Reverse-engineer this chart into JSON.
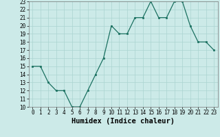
{
  "x": [
    0,
    1,
    2,
    3,
    4,
    5,
    6,
    7,
    8,
    9,
    10,
    11,
    12,
    13,
    14,
    15,
    16,
    17,
    18,
    19,
    20,
    21,
    22,
    23
  ],
  "y": [
    15,
    15,
    13,
    12,
    12,
    10,
    10,
    12,
    14,
    16,
    20,
    19,
    19,
    21,
    21,
    23,
    21,
    21,
    23,
    23,
    20,
    18,
    18,
    17
  ],
  "line_color": "#1a7060",
  "marker_color": "#1a7060",
  "bg_color": "#cceae8",
  "grid_color": "#aad4d0",
  "xlabel": "Humidex (Indice chaleur)",
  "ylim": [
    10,
    23
  ],
  "xlim": [
    -0.5,
    23.5
  ],
  "yticks": [
    10,
    11,
    12,
    13,
    14,
    15,
    16,
    17,
    18,
    19,
    20,
    21,
    22,
    23
  ],
  "xticks": [
    0,
    1,
    2,
    3,
    4,
    5,
    6,
    7,
    8,
    9,
    10,
    11,
    12,
    13,
    14,
    15,
    16,
    17,
    18,
    19,
    20,
    21,
    22,
    23
  ],
  "tick_label_fontsize": 5.5,
  "xlabel_fontsize": 7.5
}
